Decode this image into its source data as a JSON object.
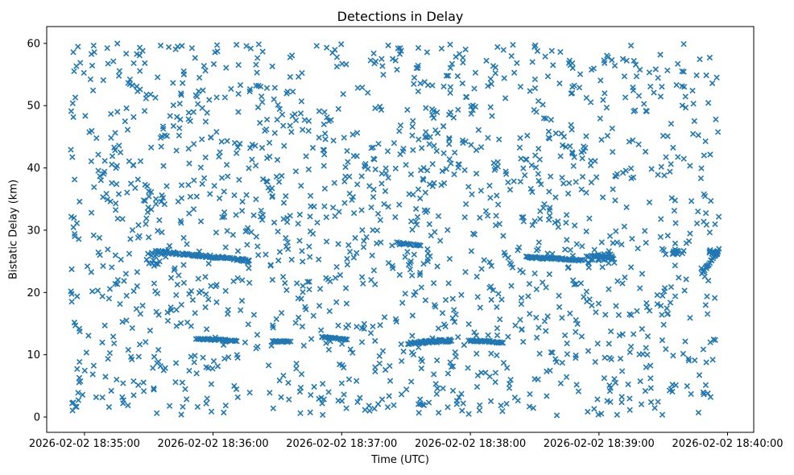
{
  "chart_data": {
    "type": "scatter",
    "title": "Detections in Delay",
    "xlabel": "Time (UTC)",
    "ylabel": "Bistatic Delay (km)",
    "marker": "x",
    "marker_color": "#1f77b4",
    "axis_color": "#000000",
    "background_color": "#ffffff",
    "legend": "none",
    "grid": false,
    "x_axis": {
      "tick_labels": [
        "2026-02-02 18:35:00",
        "2026-02-02 18:36:00",
        "2026-02-02 18:37:00",
        "2026-02-02 18:38:00",
        "2026-02-02 18:39:00",
        "2026-02-02 18:40:00"
      ],
      "tick_values_sec": [
        0,
        60,
        120,
        180,
        240,
        300
      ],
      "range_sec": [
        -17.6,
        312.2
      ],
      "epoch": "2026-02-02 18:35:00"
    },
    "y_axis": {
      "tick_labels": [
        "0",
        "10",
        "20",
        "30",
        "40",
        "50",
        "60"
      ],
      "tick_values": [
        0,
        10,
        20,
        30,
        40,
        50,
        60
      ],
      "range": [
        -2.46,
        62.7
      ]
    },
    "points": {
      "background": {
        "count": 1600,
        "seed": 7,
        "t_range_sec": [
          -6.5,
          296
        ],
        "delay_range_km": [
          0.2,
          60
        ],
        "distribution": "uniform"
      },
      "tracks": [
        {
          "kind": "cluster",
          "t0": 29,
          "t1": 38,
          "d0": 24.2,
          "d1": 26.8,
          "count": 14
        },
        {
          "kind": "track",
          "t0": 34,
          "t1": 77,
          "d0": 26.6,
          "d1": 25.1,
          "count": 85,
          "jd": 0.18,
          "jt": 1.5
        },
        {
          "kind": "track",
          "t0": 52,
          "t1": 71,
          "d0": 12.6,
          "d1": 12.2,
          "count": 32,
          "jd": 0.12,
          "jt": 0.8
        },
        {
          "kind": "track",
          "t0": 87.5,
          "t1": 96,
          "d0": 12.2,
          "d1": 12.1,
          "count": 16,
          "jd": 0.1,
          "jt": 0.5
        },
        {
          "kind": "track",
          "t0": 110.5,
          "t1": 122.5,
          "d0": 12.9,
          "d1": 12.4,
          "count": 22,
          "jd": 0.12,
          "jt": 0.6
        },
        {
          "kind": "track",
          "t0": 146,
          "t1": 157,
          "d0": 28.0,
          "d1": 27.5,
          "count": 16,
          "jd": 0.12,
          "jt": 0.6
        },
        {
          "kind": "track",
          "t0": 151,
          "t1": 171,
          "d0": 11.9,
          "d1": 12.3,
          "count": 60,
          "jd": 0.22,
          "jt": 1.2
        },
        {
          "kind": "track",
          "t0": 179.5,
          "t1": 195.5,
          "d0": 12.3,
          "d1": 12.0,
          "count": 32,
          "jd": 0.15,
          "jt": 0.8
        },
        {
          "kind": "track",
          "t0": 206,
          "t1": 232,
          "d0": 25.7,
          "d1": 25.2,
          "count": 55,
          "jd": 0.15,
          "jt": 1.0
        },
        {
          "kind": "cluster",
          "t0": 233,
          "t1": 247,
          "d0": 25.1,
          "d1": 26.3,
          "count": 30
        },
        {
          "kind": "cluster",
          "t0": 274,
          "t1": 280,
          "d0": 26.1,
          "d1": 26.9,
          "count": 12
        },
        {
          "kind": "track",
          "t0": 288,
          "t1": 296,
          "d0": 23.0,
          "d1": 26.9,
          "count": 18,
          "jd": 0.15,
          "jt": 0.4
        },
        {
          "kind": "cluster",
          "t0": 291,
          "t1": 296,
          "d0": 26.0,
          "d1": 27.1,
          "count": 12
        }
      ]
    }
  }
}
